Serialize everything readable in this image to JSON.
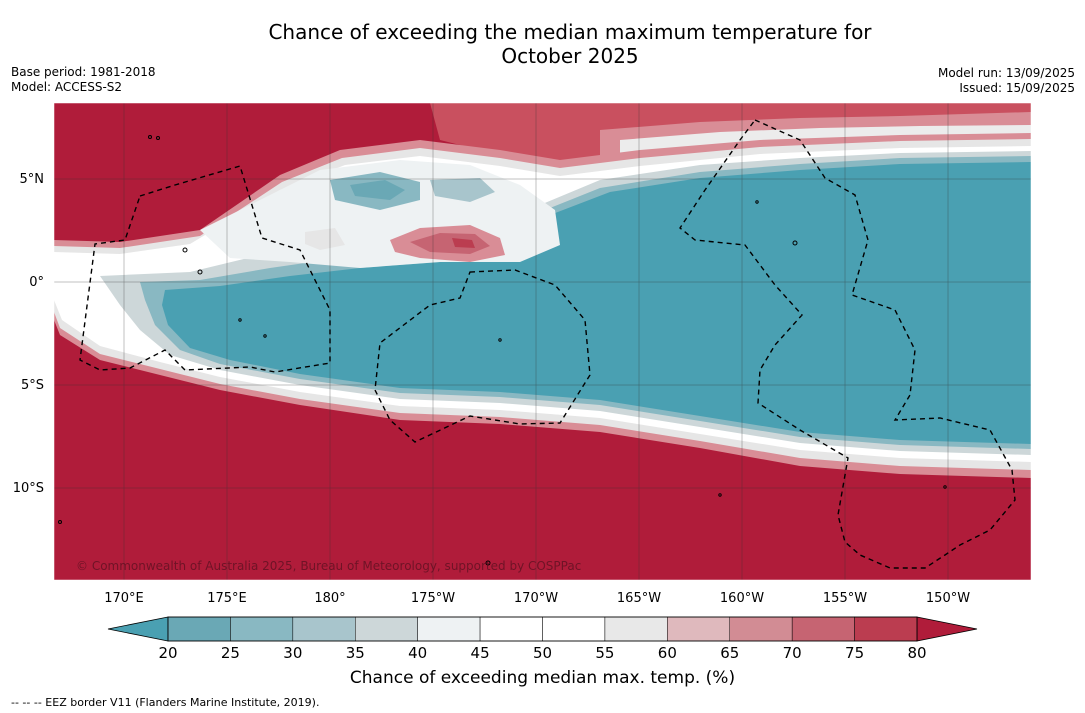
{
  "title_line1": "Chance of exceeding the median maximum temperature for",
  "title_line2": "October 2025",
  "base_period": "Base period: 1981-2018",
  "model": "Model: ACCESS-S2",
  "model_run": "Model run: 13/09/2025",
  "issued": "Issued: 15/09/2025",
  "lat_labels": [
    "5°N",
    "0°",
    "5°S",
    "10°S"
  ],
  "lon_labels": [
    "170°E",
    "175°E",
    "180°",
    "175°W",
    "170°W",
    "165°W",
    "160°W",
    "155°W",
    "150°W"
  ],
  "copyright": "© Commonwealth of Australia 2025, Bureau of Meteorology, supported by COSPPac",
  "colorbar": {
    "ticks": [
      "20",
      "25",
      "30",
      "35",
      "40",
      "45",
      "50",
      "55",
      "60",
      "65",
      "70",
      "75",
      "80"
    ],
    "colors": [
      "#6aa8b5",
      "#89b8c2",
      "#a8c5cc",
      "#cdd7d9",
      "#eef2f3",
      "#ffffff",
      "#ffffff",
      "#e8e8e8",
      "#dfb9bd",
      "#d28c94",
      "#c66472",
      "#bb3d50"
    ],
    "under_color": "#4aa0b2",
    "over_color": "#b01c3a",
    "label": "Chance of exceeding median max. temp. (%)"
  },
  "footnote": "-- -- -- EEZ border V11 (Flanders Marine Institute, 2019).",
  "colors": {
    "warm": "#b01c3a",
    "cool": "#4aa0b2"
  }
}
